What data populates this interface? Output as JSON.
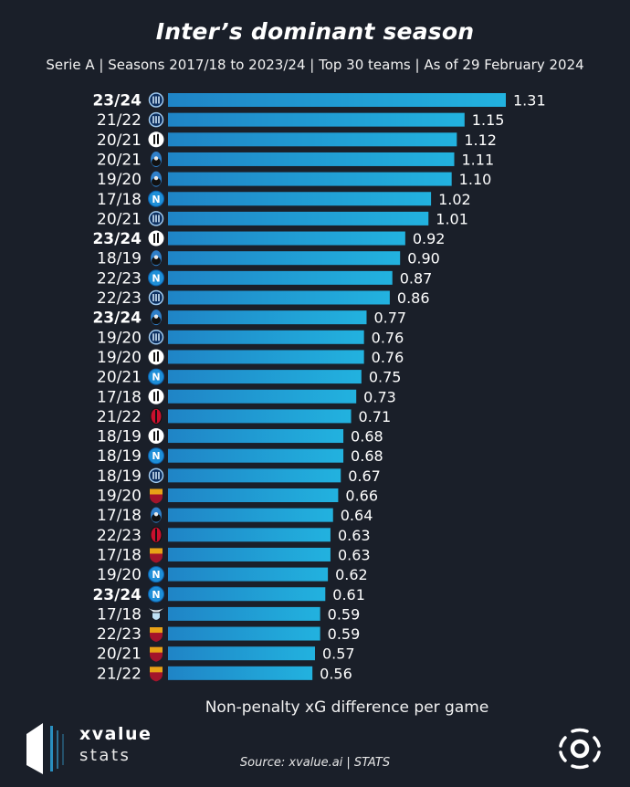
{
  "header": {
    "title": "Inter’s dominant season",
    "subtitle": "Serie A | Seasons 2017/18 to 2023/24 | Top 30 teams | As of 29 February 2024"
  },
  "footer": {
    "source": "Source: xvalue.ai | STATS",
    "brand_line1": "xvalue",
    "brand_line2": "stats"
  },
  "colors": {
    "background": "#1a1f29",
    "bar_start": "#1f84c6",
    "bar_end": "#22b2df",
    "text": "#ffffff"
  },
  "team_colors": {
    "Inter": "#1d6fb8",
    "Juventus": "#ffffff",
    "Atalanta": "#2f7fc9",
    "Napoli": "#1e8fd8",
    "Milan": "#c8102e",
    "Roma": "#e8a317",
    "Lazio": "#bfe0f5"
  },
  "chart_data": {
    "type": "bar",
    "orientation": "horizontal",
    "title": "Inter’s dominant season",
    "subtitle": "Serie A | Seasons 2017/18 to 2023/24 | Top 30 teams | As of 29 February 2024",
    "xlabel": "Non-penalty xG difference per game",
    "ylabel": "",
    "xlim": [
      0,
      1.31
    ],
    "grid": false,
    "legend": "none",
    "categories": [
      "23/24",
      "21/22",
      "20/21",
      "20/21",
      "19/20",
      "17/18",
      "20/21",
      "23/24",
      "18/19",
      "22/23",
      "22/23",
      "23/24",
      "19/20",
      "19/20",
      "20/21",
      "17/18",
      "21/22",
      "18/19",
      "18/19",
      "18/19",
      "19/20",
      "17/18",
      "22/23",
      "17/18",
      "19/20",
      "23/24",
      "17/18",
      "22/23",
      "20/21",
      "21/22"
    ],
    "teams": [
      "Inter",
      "Inter",
      "Juventus",
      "Atalanta",
      "Atalanta",
      "Napoli",
      "Inter",
      "Juventus",
      "Atalanta",
      "Napoli",
      "Inter",
      "Atalanta",
      "Inter",
      "Juventus",
      "Napoli",
      "Juventus",
      "Milan",
      "Juventus",
      "Napoli",
      "Inter",
      "Roma",
      "Atalanta",
      "Milan",
      "Roma",
      "Napoli",
      "Napoli",
      "Lazio",
      "Roma",
      "Roma",
      "Roma"
    ],
    "highlight": [
      true,
      false,
      false,
      false,
      false,
      false,
      false,
      true,
      false,
      false,
      false,
      true,
      false,
      false,
      false,
      false,
      false,
      false,
      false,
      false,
      false,
      false,
      false,
      false,
      false,
      true,
      false,
      false,
      false,
      false
    ],
    "values": [
      1.31,
      1.15,
      1.12,
      1.11,
      1.1,
      1.02,
      1.01,
      0.92,
      0.9,
      0.87,
      0.86,
      0.77,
      0.76,
      0.76,
      0.75,
      0.73,
      0.71,
      0.68,
      0.68,
      0.67,
      0.66,
      0.64,
      0.63,
      0.63,
      0.62,
      0.61,
      0.59,
      0.59,
      0.57,
      0.56
    ],
    "value_labels": [
      "1.31",
      "1.15",
      "1.12",
      "1.11",
      "1.10",
      "1.02",
      "1.01",
      "0.92",
      "0.90",
      "0.87",
      "0.86",
      "0.77",
      "0.76",
      "0.76",
      "0.75",
      "0.73",
      "0.71",
      "0.68",
      "0.68",
      "0.67",
      "0.66",
      "0.64",
      "0.63",
      "0.63",
      "0.62",
      "0.61",
      "0.59",
      "0.59",
      "0.57",
      "0.56"
    ]
  }
}
